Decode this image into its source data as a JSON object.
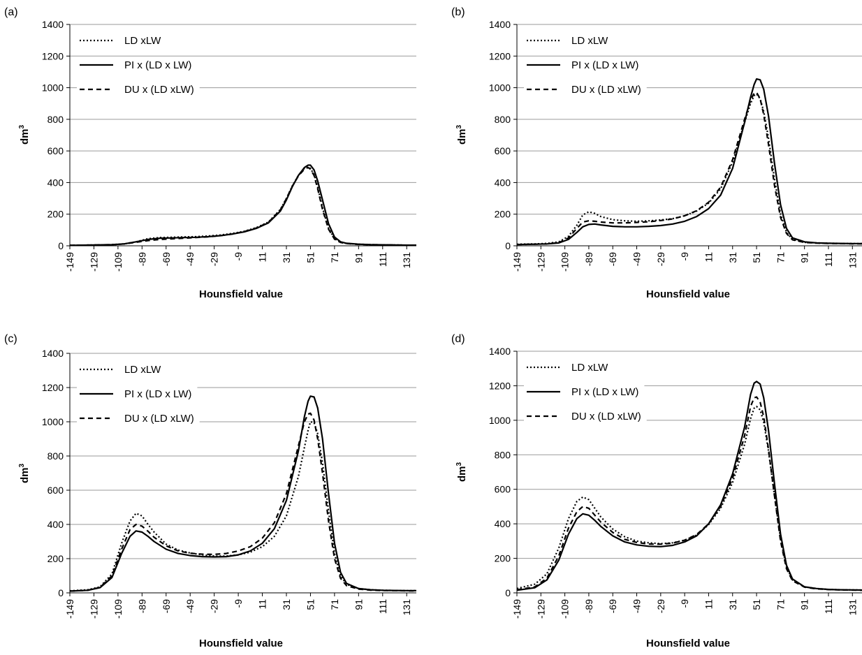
{
  "chart_data": [
    {
      "type": "line",
      "panel_label": "(a)",
      "xlabel": "Hounsfield value",
      "ylabel": "dm",
      "ylabel_superscript": "3",
      "ylim": [
        0,
        1400
      ],
      "yticks": [
        0,
        200,
        400,
        600,
        800,
        1000,
        1200,
        1400
      ],
      "xlim": [
        -149,
        139
      ],
      "xticks": [
        -149,
        -129,
        -109,
        -89,
        -69,
        -49,
        -29,
        -9,
        11,
        31,
        51,
        71,
        91,
        111,
        131
      ],
      "grid": "horizontal",
      "legend_position": "top-left",
      "series": [
        {
          "name": "LD xLW",
          "style": "dotted",
          "x": [
            -149,
            -129,
            -114,
            -104,
            -94,
            -84,
            -74,
            -64,
            -54,
            -44,
            -34,
            -24,
            -14,
            -4,
            6,
            16,
            26,
            31,
            36,
            41,
            46,
            49,
            51,
            54,
            57,
            61,
            66,
            71,
            76,
            81,
            91,
            101,
            111,
            121,
            131,
            139
          ],
          "y": [
            3,
            5,
            7,
            12,
            25,
            45,
            52,
            54,
            56,
            58,
            62,
            68,
            78,
            92,
            115,
            150,
            230,
            300,
            380,
            445,
            490,
            500,
            490,
            450,
            370,
            240,
            110,
            45,
            22,
            15,
            10,
            7,
            6,
            5,
            4,
            4
          ]
        },
        {
          "name": "PI x (LD x LW)",
          "style": "solid",
          "x": [
            -149,
            -129,
            -114,
            -104,
            -94,
            -84,
            -74,
            -64,
            -54,
            -44,
            -34,
            -24,
            -14,
            -4,
            6,
            16,
            26,
            31,
            36,
            41,
            46,
            49,
            51,
            54,
            57,
            61,
            66,
            71,
            76,
            81,
            91,
            101,
            111,
            121,
            131,
            139
          ],
          "y": [
            3,
            5,
            7,
            12,
            25,
            40,
            48,
            50,
            52,
            54,
            58,
            64,
            74,
            88,
            110,
            145,
            220,
            290,
            375,
            445,
            495,
            510,
            510,
            480,
            410,
            290,
            140,
            55,
            25,
            16,
            10,
            7,
            6,
            5,
            4,
            4
          ]
        },
        {
          "name": "DU x (LD xLW)",
          "style": "dashed",
          "x": [
            -149,
            -129,
            -114,
            -104,
            -94,
            -84,
            -74,
            -64,
            -54,
            -44,
            -34,
            -24,
            -14,
            -4,
            6,
            16,
            26,
            31,
            36,
            41,
            46,
            49,
            51,
            54,
            57,
            61,
            66,
            71,
            76,
            81,
            91,
            101,
            111,
            121,
            131,
            139
          ],
          "y": [
            3,
            5,
            7,
            12,
            22,
            33,
            40,
            44,
            48,
            52,
            57,
            64,
            74,
            90,
            112,
            148,
            228,
            298,
            378,
            442,
            485,
            495,
            485,
            445,
            360,
            230,
            105,
            42,
            21,
            14,
            9,
            7,
            6,
            5,
            4,
            4
          ]
        }
      ]
    },
    {
      "type": "line",
      "panel_label": "(b)",
      "xlabel": "Hounsfield value",
      "ylabel": "dm",
      "ylabel_superscript": "3",
      "ylim": [
        0,
        1400
      ],
      "yticks": [
        0,
        200,
        400,
        600,
        800,
        1000,
        1200,
        1400
      ],
      "xlim": [
        -149,
        139
      ],
      "xticks": [
        -149,
        -129,
        -109,
        -89,
        -69,
        -49,
        -29,
        -9,
        11,
        31,
        51,
        71,
        91,
        111,
        131
      ],
      "grid": "horizontal",
      "legend_position": "top-left",
      "series": [
        {
          "name": "LD xLW",
          "style": "dotted",
          "x": [
            -149,
            -134,
            -124,
            -114,
            -106,
            -99,
            -94,
            -89,
            -84,
            -79,
            -69,
            -59,
            -49,
            -39,
            -29,
            -19,
            -9,
            1,
            11,
            21,
            31,
            41,
            46,
            49,
            51,
            54,
            57,
            61,
            66,
            71,
            76,
            81,
            91,
            101,
            111,
            121,
            131,
            139
          ],
          "y": [
            10,
            12,
            15,
            25,
            60,
            130,
            195,
            215,
            205,
            185,
            165,
            158,
            155,
            158,
            163,
            172,
            190,
            220,
            270,
            360,
            530,
            780,
            900,
            950,
            960,
            930,
            850,
            680,
            420,
            200,
            85,
            40,
            22,
            18,
            16,
            15,
            14,
            14
          ]
        },
        {
          "name": "PI x (LD x LW)",
          "style": "solid",
          "x": [
            -149,
            -134,
            -124,
            -114,
            -106,
            -99,
            -94,
            -89,
            -84,
            -79,
            -69,
            -59,
            -49,
            -39,
            -29,
            -19,
            -9,
            1,
            11,
            21,
            31,
            41,
            46,
            49,
            51,
            54,
            57,
            61,
            66,
            71,
            76,
            81,
            91,
            101,
            111,
            121,
            131,
            139
          ],
          "y": [
            8,
            10,
            12,
            18,
            40,
            85,
            120,
            135,
            138,
            132,
            123,
            120,
            120,
            123,
            128,
            138,
            155,
            185,
            235,
            320,
            490,
            780,
            940,
            1020,
            1055,
            1050,
            990,
            820,
            520,
            260,
            110,
            50,
            25,
            18,
            16,
            15,
            14,
            14
          ]
        },
        {
          "name": "DU x (LD xLW)",
          "style": "dashed",
          "x": [
            -149,
            -134,
            -124,
            -114,
            -106,
            -99,
            -94,
            -89,
            -84,
            -79,
            -69,
            -59,
            -49,
            -39,
            -29,
            -19,
            -9,
            1,
            11,
            21,
            31,
            41,
            46,
            49,
            51,
            54,
            57,
            61,
            66,
            71,
            76,
            81,
            91,
            101,
            111,
            121,
            131,
            139
          ],
          "y": [
            8,
            10,
            12,
            20,
            50,
            110,
            150,
            158,
            155,
            150,
            145,
            145,
            148,
            152,
            160,
            170,
            190,
            222,
            275,
            370,
            545,
            800,
            920,
            965,
            970,
            930,
            830,
            640,
            380,
            180,
            78,
            38,
            21,
            17,
            15,
            14,
            13,
            13
          ]
        }
      ]
    },
    {
      "type": "line",
      "panel_label": "(c)",
      "xlabel": "Hounsfield value",
      "ylabel": "dm",
      "ylabel_superscript": "3",
      "ylim": [
        0,
        1400
      ],
      "yticks": [
        0,
        200,
        400,
        600,
        800,
        1000,
        1200,
        1400
      ],
      "xlim": [
        -149,
        139
      ],
      "xticks": [
        -149,
        -129,
        -109,
        -89,
        -69,
        -49,
        -29,
        -9,
        11,
        31,
        51,
        71,
        91,
        111,
        131
      ],
      "grid": "horizontal",
      "legend_position": "top-left",
      "series": [
        {
          "name": "LD xLW",
          "style": "dotted",
          "x": [
            -149,
            -134,
            -124,
            -114,
            -106,
            -99,
            -94,
            -89,
            -84,
            -79,
            -69,
            -59,
            -49,
            -39,
            -29,
            -19,
            -9,
            1,
            11,
            21,
            31,
            41,
            46,
            49,
            51,
            54,
            57,
            61,
            66,
            71,
            76,
            81,
            91,
            101,
            111,
            121,
            131,
            139
          ],
          "y": [
            12,
            18,
            35,
            110,
            290,
            420,
            465,
            450,
            400,
            355,
            285,
            250,
            233,
            222,
            215,
            215,
            222,
            238,
            270,
            330,
            450,
            680,
            850,
            950,
            1000,
            995,
            930,
            760,
            480,
            230,
            100,
            50,
            25,
            18,
            15,
            14,
            13,
            13
          ]
        },
        {
          "name": "PI x (LD x LW)",
          "style": "solid",
          "x": [
            -149,
            -134,
            -124,
            -114,
            -106,
            -99,
            -94,
            -89,
            -84,
            -79,
            -69,
            -59,
            -49,
            -39,
            -29,
            -19,
            -9,
            1,
            11,
            21,
            31,
            41,
            46,
            49,
            51,
            54,
            57,
            61,
            66,
            71,
            76,
            81,
            91,
            101,
            111,
            121,
            131,
            139
          ],
          "y": [
            10,
            15,
            30,
            90,
            230,
            330,
            362,
            355,
            330,
            300,
            255,
            230,
            218,
            212,
            210,
            212,
            222,
            245,
            290,
            375,
            540,
            830,
            1030,
            1120,
            1150,
            1145,
            1080,
            900,
            580,
            290,
            120,
            55,
            25,
            18,
            15,
            14,
            13,
            13
          ]
        },
        {
          "name": "DU x (LD xLW)",
          "style": "dashed",
          "x": [
            -149,
            -134,
            -124,
            -114,
            -106,
            -99,
            -94,
            -89,
            -84,
            -79,
            -69,
            -59,
            -49,
            -39,
            -29,
            -19,
            -9,
            1,
            11,
            21,
            31,
            41,
            46,
            49,
            51,
            54,
            57,
            61,
            66,
            71,
            76,
            81,
            91,
            101,
            111,
            121,
            131,
            139
          ],
          "y": [
            10,
            15,
            32,
            100,
            255,
            370,
            400,
            390,
            360,
            325,
            275,
            245,
            232,
            226,
            225,
            230,
            245,
            270,
            320,
            410,
            580,
            860,
            1000,
            1045,
            1050,
            1010,
            900,
            700,
            420,
            200,
            85,
            42,
            22,
            16,
            14,
            13,
            12,
            12
          ]
        }
      ]
    },
    {
      "type": "line",
      "panel_label": "(d)",
      "xlabel": "Hounsfield value",
      "ylabel": "dm",
      "ylabel_superscript": "3",
      "ylim": [
        0,
        1400
      ],
      "yticks": [
        0,
        200,
        400,
        600,
        800,
        1000,
        1200,
        1400
      ],
      "xlim": [
        -149,
        139
      ],
      "xticks": [
        -149,
        -129,
        -109,
        -89,
        -69,
        -49,
        -29,
        -9,
        11,
        31,
        51,
        71,
        91,
        111,
        131
      ],
      "grid": "horizontal",
      "legend_position": "top-left",
      "series": [
        {
          "name": "LD xLW",
          "style": "dotted",
          "x": [
            -149,
            -134,
            -124,
            -114,
            -106,
            -99,
            -94,
            -89,
            -84,
            -79,
            -69,
            -59,
            -49,
            -39,
            -29,
            -19,
            -9,
            1,
            11,
            21,
            31,
            41,
            46,
            49,
            51,
            54,
            57,
            61,
            66,
            71,
            76,
            81,
            91,
            101,
            111,
            121,
            131,
            139
          ],
          "y": [
            25,
            50,
            110,
            260,
            430,
            530,
            555,
            540,
            490,
            440,
            370,
            325,
            300,
            290,
            285,
            290,
            305,
            335,
            395,
            490,
            640,
            860,
            1010,
            1070,
            1080,
            1060,
            990,
            820,
            560,
            310,
            150,
            75,
            35,
            25,
            20,
            18,
            17,
            16
          ]
        },
        {
          "name": "PI x (LD x LW)",
          "style": "solid",
          "x": [
            -149,
            -134,
            -124,
            -114,
            -106,
            -99,
            -94,
            -89,
            -84,
            -79,
            -69,
            -59,
            -49,
            -39,
            -29,
            -19,
            -9,
            1,
            11,
            21,
            31,
            41,
            46,
            49,
            51,
            54,
            57,
            61,
            66,
            71,
            76,
            81,
            91,
            101,
            111,
            121,
            131,
            139
          ],
          "y": [
            15,
            30,
            75,
            190,
            340,
            430,
            458,
            450,
            420,
            385,
            330,
            295,
            278,
            270,
            268,
            275,
            295,
            330,
            400,
            510,
            690,
            960,
            1150,
            1215,
            1225,
            1210,
            1130,
            940,
            630,
            340,
            160,
            80,
            35,
            25,
            20,
            18,
            17,
            16
          ]
        },
        {
          "name": "DU x (LD xLW)",
          "style": "dashed",
          "x": [
            -149,
            -134,
            -124,
            -114,
            -106,
            -99,
            -94,
            -89,
            -84,
            -79,
            -69,
            -59,
            -49,
            -39,
            -29,
            -19,
            -9,
            1,
            11,
            21,
            31,
            41,
            46,
            49,
            51,
            54,
            57,
            61,
            66,
            71,
            76,
            81,
            91,
            101,
            111,
            121,
            131,
            139
          ],
          "y": [
            18,
            35,
            85,
            215,
            375,
            470,
            500,
            490,
            450,
            410,
            350,
            310,
            292,
            283,
            282,
            288,
            305,
            338,
            400,
            500,
            665,
            910,
            1080,
            1130,
            1135,
            1105,
            1020,
            830,
            560,
            300,
            140,
            70,
            33,
            23,
            19,
            17,
            16,
            15
          ]
        }
      ]
    }
  ]
}
